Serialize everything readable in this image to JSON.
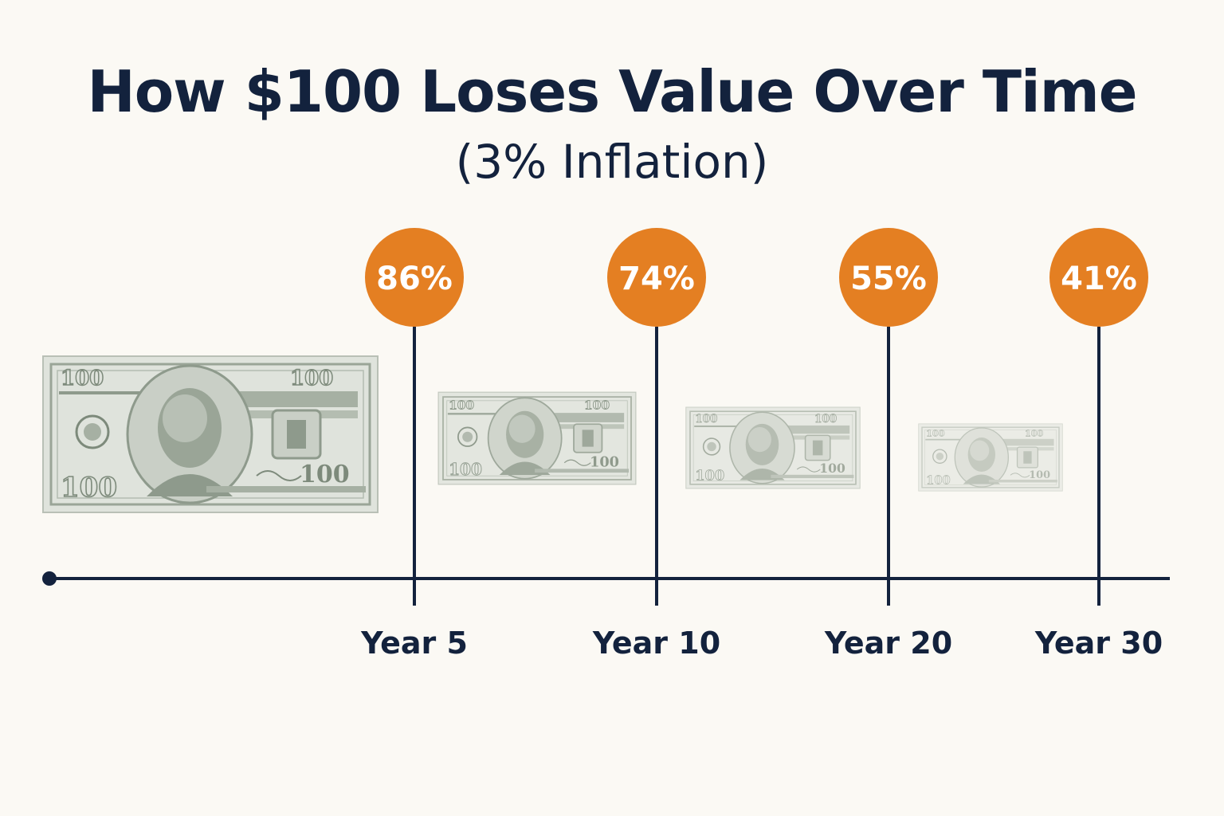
{
  "title": "How $100 Loses Value Over Time",
  "subtitle": "(3% Inflation)",
  "colors": {
    "background": "#fbf9f4",
    "text": "#13223d",
    "bubble": "#e47f22",
    "bill": "#8e9a8c"
  },
  "bill": {
    "denomination": "100",
    "icon": "hundred-dollar-bill-icon"
  },
  "milestones": [
    {
      "year_label": "Year 5",
      "value_label": "86%",
      "percent": 86
    },
    {
      "year_label": "Year 10",
      "value_label": "74%",
      "percent": 74
    },
    {
      "year_label": "Year 20",
      "value_label": "55%",
      "percent": 55
    },
    {
      "year_label": "Year 30",
      "value_label": "41%",
      "percent": 41
    }
  ]
}
